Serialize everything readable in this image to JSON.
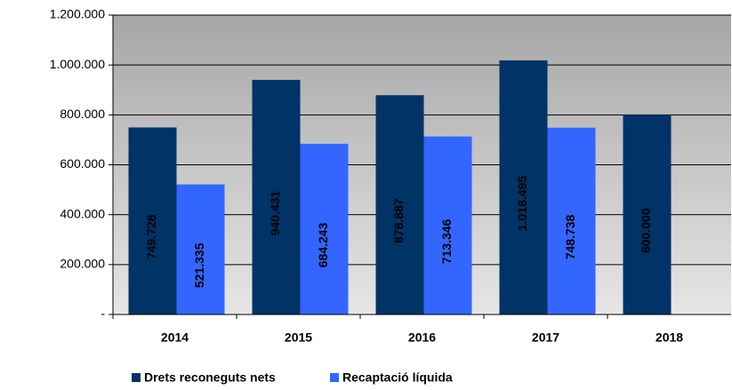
{
  "chart_data": {
    "type": "bar",
    "categories": [
      "2014",
      "2015",
      "2016",
      "2017",
      "2018"
    ],
    "series": [
      {
        "name": "Drets reconeguts nets",
        "color": "#003366",
        "values": [
          749728,
          940431,
          878887,
          1018495,
          800000
        ],
        "value_labels": [
          "749.728",
          "940.431",
          "878.887",
          "1.018.495",
          "800.000"
        ],
        "label_colors": [
          "#000000",
          "#000000",
          "#000000",
          "#000000",
          "#ffffff"
        ]
      },
      {
        "name": "Recaptació líquida",
        "color": "#3366ff",
        "values": [
          521335,
          684243,
          713346,
          748738,
          null
        ],
        "value_labels": [
          "521.335",
          "684.243",
          "713.346",
          "748.738",
          null
        ],
        "label_colors": [
          "#000000",
          "#000000",
          "#000000",
          "#000000",
          null
        ]
      }
    ],
    "ylim": [
      0,
      1200000
    ],
    "yticks": [
      {
        "value": 0,
        "label": "-"
      },
      {
        "value": 200000,
        "label": "200.000"
      },
      {
        "value": 400000,
        "label": "400.000"
      },
      {
        "value": 600000,
        "label": "600.000"
      },
      {
        "value": 800000,
        "label": "800.000"
      },
      {
        "value": 1000000,
        "label": "1.000.000"
      },
      {
        "value": 1200000,
        "label": "1.200.000"
      }
    ],
    "grid": true,
    "legend": "bottom"
  }
}
